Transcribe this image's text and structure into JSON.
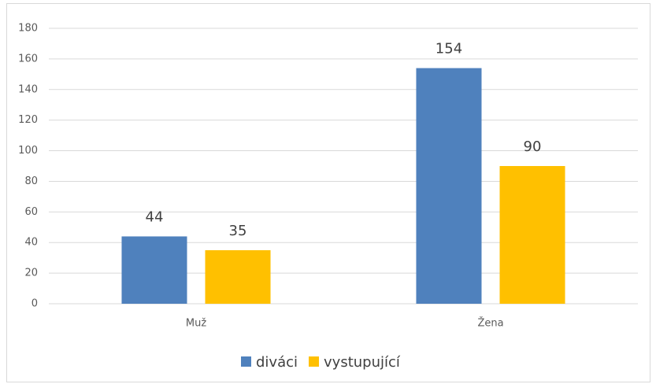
{
  "chart_data": {
    "type": "bar",
    "categories": [
      "Muž",
      "Žena"
    ],
    "series": [
      {
        "name": "diváci",
        "color": "#4f81bd",
        "values": [
          44,
          154
        ]
      },
      {
        "name": "vystupující",
        "color": "#ffc000",
        "values": [
          35,
          90
        ]
      }
    ],
    "ylim": [
      0,
      180
    ],
    "yticks": [
      0,
      20,
      40,
      60,
      80,
      100,
      120,
      140,
      160,
      180
    ],
    "grid": true,
    "legend": "bottom"
  }
}
